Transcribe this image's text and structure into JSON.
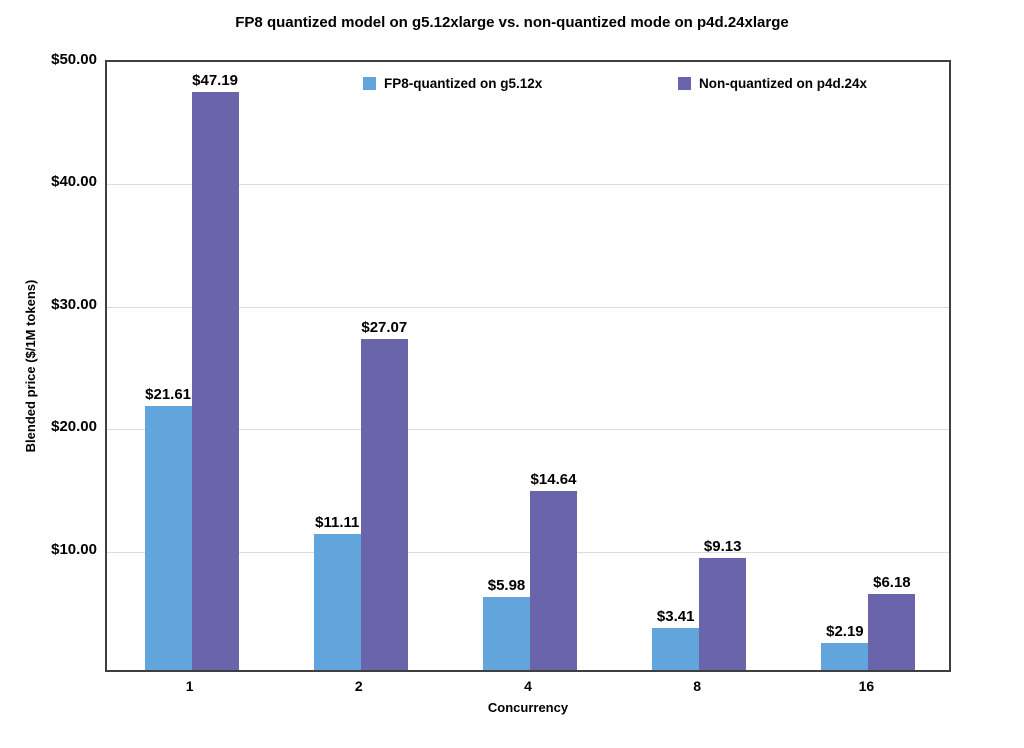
{
  "chart_data": {
    "type": "bar",
    "title": "FP8 quantized model on g5.12xlarge vs. non-quantized mode on p4d.24xlarge",
    "xlabel": "Concurrency",
    "ylabel": "Blended price ($/1M tokens)",
    "categories": [
      "1",
      "2",
      "4",
      "8",
      "16"
    ],
    "series": [
      {
        "name": "FP8-quantized on g5.12x",
        "color": "#62a5dd",
        "values": [
          21.61,
          11.11,
          5.98,
          3.41,
          2.19
        ],
        "data_labels": [
          "$21.61",
          "$11.11",
          "$5.98",
          "$3.41",
          "$2.19"
        ]
      },
      {
        "name": "Non-quantized on p4d.24x",
        "color": "#6a64aa",
        "values": [
          47.19,
          27.07,
          14.64,
          9.13,
          6.18
        ],
        "data_labels": [
          "$47.19",
          "$27.07",
          "$14.64",
          "$9.13",
          "$6.18"
        ]
      }
    ],
    "ylim": [
      0,
      50
    ],
    "yticks": [
      {
        "value": 10,
        "label": "$10.00"
      },
      {
        "value": 20,
        "label": "$20.00"
      },
      {
        "value": 30,
        "label": "$30.00"
      },
      {
        "value": 40,
        "label": "$40.00"
      },
      {
        "value": 50,
        "label": "$50.00"
      }
    ],
    "grid": true,
    "legend_position": "top-inside"
  },
  "colors": {
    "background": "#ffffff",
    "axis_border": "#3f3f3f",
    "gridline": "#dcdcdc",
    "text": "#000000"
  }
}
